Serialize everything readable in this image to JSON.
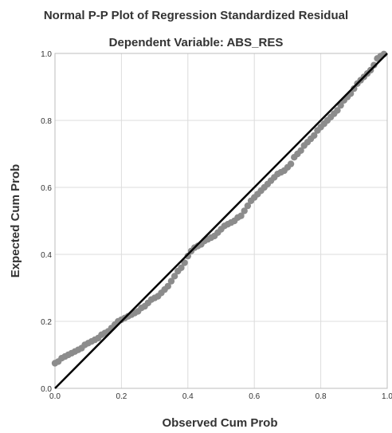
{
  "chart_data": {
    "type": "scatter",
    "title": "Normal P-P Plot of Regression Standardized Residual",
    "subtitle": "Dependent Variable: ABS_RES",
    "xlabel": "Observed Cum Prob",
    "ylabel": "Expected Cum Prob",
    "xlim": [
      0,
      1
    ],
    "ylim": [
      0,
      1
    ],
    "xticks": [
      "0.0",
      "0.2",
      "0.4",
      "0.6",
      "0.8",
      "1.0"
    ],
    "yticks": [
      "0.0",
      "0.2",
      "0.4",
      "0.6",
      "0.8",
      "1.0"
    ],
    "grid": true,
    "reference_line": {
      "x": [
        0,
        1
      ],
      "y": [
        0,
        1
      ]
    },
    "colors": {
      "points": "#8c8c8c",
      "reference_line": "#000000",
      "grid": "#dcdcdc",
      "frame": "#bdbdbd"
    },
    "series": [
      {
        "x": [
          0.0,
          0.01,
          0.02,
          0.03,
          0.04,
          0.05,
          0.06,
          0.07,
          0.08,
          0.09,
          0.1,
          0.11,
          0.12,
          0.13,
          0.14,
          0.15,
          0.16,
          0.17,
          0.18,
          0.19,
          0.2,
          0.21,
          0.22,
          0.23,
          0.24,
          0.25,
          0.26,
          0.27,
          0.28,
          0.29,
          0.3,
          0.31,
          0.32,
          0.33,
          0.34,
          0.35,
          0.36,
          0.37,
          0.38,
          0.39,
          0.4,
          0.41,
          0.42,
          0.43,
          0.44,
          0.45,
          0.46,
          0.47,
          0.48,
          0.49,
          0.5,
          0.51,
          0.52,
          0.53,
          0.54,
          0.55,
          0.56,
          0.57,
          0.58,
          0.59,
          0.6,
          0.61,
          0.62,
          0.63,
          0.64,
          0.65,
          0.66,
          0.67,
          0.68,
          0.69,
          0.7,
          0.71,
          0.72,
          0.73,
          0.74,
          0.75,
          0.76,
          0.77,
          0.78,
          0.79,
          0.8,
          0.81,
          0.82,
          0.83,
          0.84,
          0.85,
          0.86,
          0.87,
          0.88,
          0.89,
          0.9,
          0.91,
          0.92,
          0.93,
          0.94,
          0.95,
          0.96,
          0.97,
          0.98,
          0.99
        ],
        "y": [
          0.075,
          0.08,
          0.09,
          0.095,
          0.1,
          0.105,
          0.11,
          0.115,
          0.12,
          0.13,
          0.135,
          0.14,
          0.145,
          0.15,
          0.16,
          0.165,
          0.17,
          0.18,
          0.19,
          0.2,
          0.205,
          0.21,
          0.215,
          0.22,
          0.225,
          0.23,
          0.24,
          0.245,
          0.255,
          0.265,
          0.27,
          0.275,
          0.285,
          0.295,
          0.305,
          0.32,
          0.335,
          0.35,
          0.36,
          0.375,
          0.395,
          0.41,
          0.42,
          0.425,
          0.43,
          0.44,
          0.445,
          0.45,
          0.455,
          0.465,
          0.475,
          0.485,
          0.49,
          0.495,
          0.5,
          0.51,
          0.515,
          0.53,
          0.545,
          0.56,
          0.57,
          0.58,
          0.59,
          0.6,
          0.61,
          0.62,
          0.63,
          0.64,
          0.645,
          0.65,
          0.66,
          0.67,
          0.69,
          0.7,
          0.71,
          0.725,
          0.735,
          0.745,
          0.755,
          0.77,
          0.78,
          0.79,
          0.8,
          0.81,
          0.82,
          0.83,
          0.845,
          0.86,
          0.87,
          0.88,
          0.895,
          0.91,
          0.92,
          0.93,
          0.94,
          0.95,
          0.965,
          0.985,
          0.992,
          0.998
        ]
      }
    ]
  }
}
